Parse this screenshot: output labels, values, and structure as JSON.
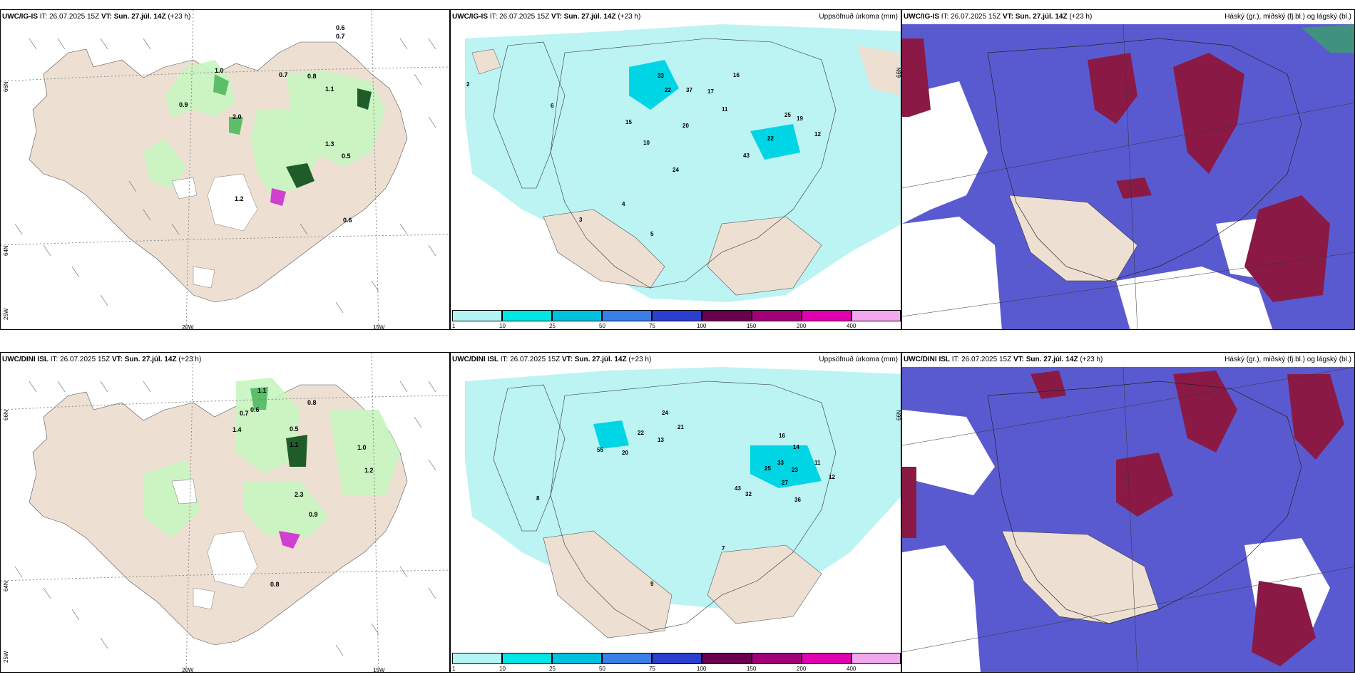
{
  "panels": [
    {
      "model": "UWC/IG-IS",
      "it_label": "IT:",
      "it": "26.07.2025 15Z",
      "vt_label": "VT:",
      "vt": "Sun. 27.júl. 14Z",
      "lead": "(+23 h)",
      "right_title": ""
    },
    {
      "model": "UWC/IG-IS",
      "it_label": "IT:",
      "it": "26.07.2025 15Z",
      "vt_label": "VT:",
      "vt": "Sun. 27.júl. 14Z",
      "lead": "(+23 h)",
      "right_title": "Uppsöfnuð úrkoma (mm)"
    },
    {
      "model": "UWC/IG-IS",
      "it_label": "IT:",
      "it": "26.07.2025 15Z",
      "vt_label": "VT:",
      "vt": "Sun. 27.júl. 14Z",
      "lead": "(+23 h)",
      "right_title": "Háský (gr.), miðský (fj.bl.) og lágský (bl.)"
    },
    {
      "model": "UWC/DINI ISL",
      "it_label": "IT:",
      "it": "26.07.2025 15Z",
      "vt_label": "VT:",
      "vt": "Sun. 27.júl. 14Z",
      "lead": "(+23 h)",
      "right_title": ""
    },
    {
      "model": "UWC/DINI ISL",
      "it_label": "IT:",
      "it": "26.07.2025 15Z",
      "vt_label": "VT:",
      "vt": "Sun. 27.júl. 14Z",
      "lead": "(+23 h)",
      "right_title": "Uppsöfnuð úrkoma (mm)"
    },
    {
      "model": "UWC/DINI ISL",
      "it_label": "IT:",
      "it": "26.07.2025 15Z",
      "vt_label": "VT:",
      "vt": "Sun. 27.júl. 14Z",
      "lead": "(+23 h)",
      "right_title": "Háský (gr.), miðský (fj.bl.) og lágský (bl.)"
    }
  ],
  "grid_labels": {
    "lon_20": "20W",
    "lon_15": "15W",
    "lat_66": "66N",
    "lat_64": "64N",
    "lon_25": "25W"
  },
  "colorbar": {
    "labels": [
      "1",
      "10",
      "25",
      "50",
      "75",
      "100",
      "150",
      "200",
      "400"
    ],
    "colors": [
      "#b3f5f5",
      "#00e5e5",
      "#00c0e0",
      "#3a7ee8",
      "#2b3fcf",
      "#6a0050",
      "#a0007a",
      "#e000b0",
      "#f2a8ee"
    ]
  },
  "map_colors": {
    "land": "#ede0d3",
    "sea": "#ffffff",
    "precip_light": "#b8f2f2",
    "green_light": "#c8f5c0",
    "green_mid": "#5bbf6a",
    "green_dark": "#1f5c2a",
    "cloud_mid": "#5a5ad0",
    "cloud_high": "#8a1a45"
  },
  "precip_labels_top": [
    "33",
    "22",
    "37",
    "17",
    "16",
    "43",
    "22",
    "25",
    "19",
    "24",
    "20",
    "12",
    "15",
    "11",
    "5",
    "3",
    "2",
    "6",
    "10",
    "4"
  ],
  "precip_labels_bottom": [
    "24",
    "21",
    "55",
    "20",
    "22",
    "13",
    "43",
    "32",
    "36",
    "27",
    "25",
    "33",
    "23",
    "16",
    "14",
    "11",
    "12",
    "8",
    "9",
    "7"
  ],
  "wind_values_top": [
    "0.6",
    "0.7",
    "1.0",
    "0.8",
    "1.1",
    "0.7",
    "2.0",
    "1.3",
    "0.5",
    "1.2",
    "0.6",
    "0.9"
  ],
  "wind_values_bottom": [
    "1.1",
    "0.8",
    "0.7",
    "1.4",
    "0.6",
    "1.1",
    "0.5",
    "2.3",
    "0.9",
    "1.0",
    "1.2",
    "0.8"
  ]
}
